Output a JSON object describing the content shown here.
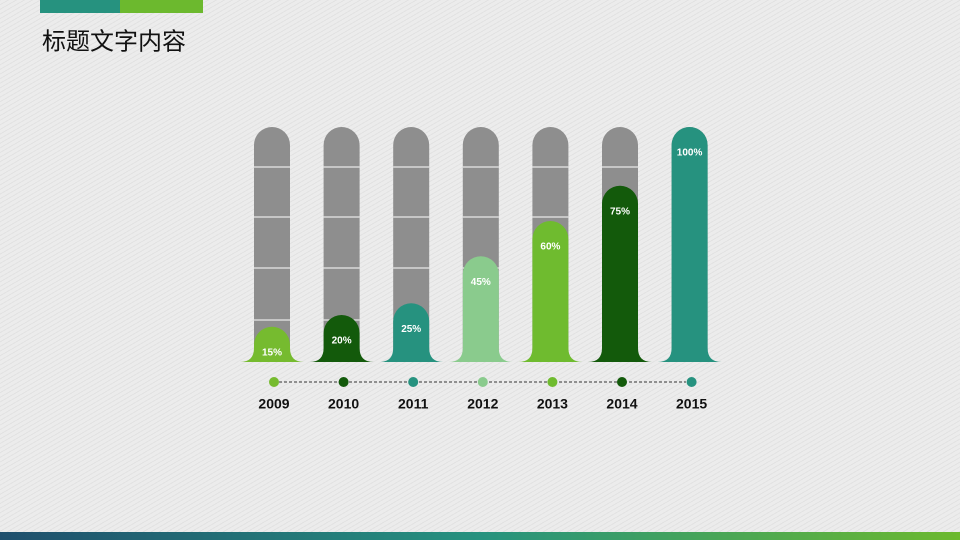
{
  "chart_data": {
    "type": "bar",
    "title": "标题文字内容",
    "categories": [
      "2009",
      "2010",
      "2011",
      "2012",
      "2013",
      "2014",
      "2015"
    ],
    "values": [
      15,
      20,
      25,
      45,
      60,
      75,
      100
    ],
    "value_labels": [
      "15%",
      "20%",
      "25%",
      "45%",
      "60%",
      "75%",
      "100%"
    ],
    "colors": [
      "#76bb2f",
      "#135a0b",
      "#26927f",
      "#8acb8d",
      "#6fbb2f",
      "#135a0b",
      "#26927f"
    ],
    "ylim": [
      0,
      100
    ]
  }
}
